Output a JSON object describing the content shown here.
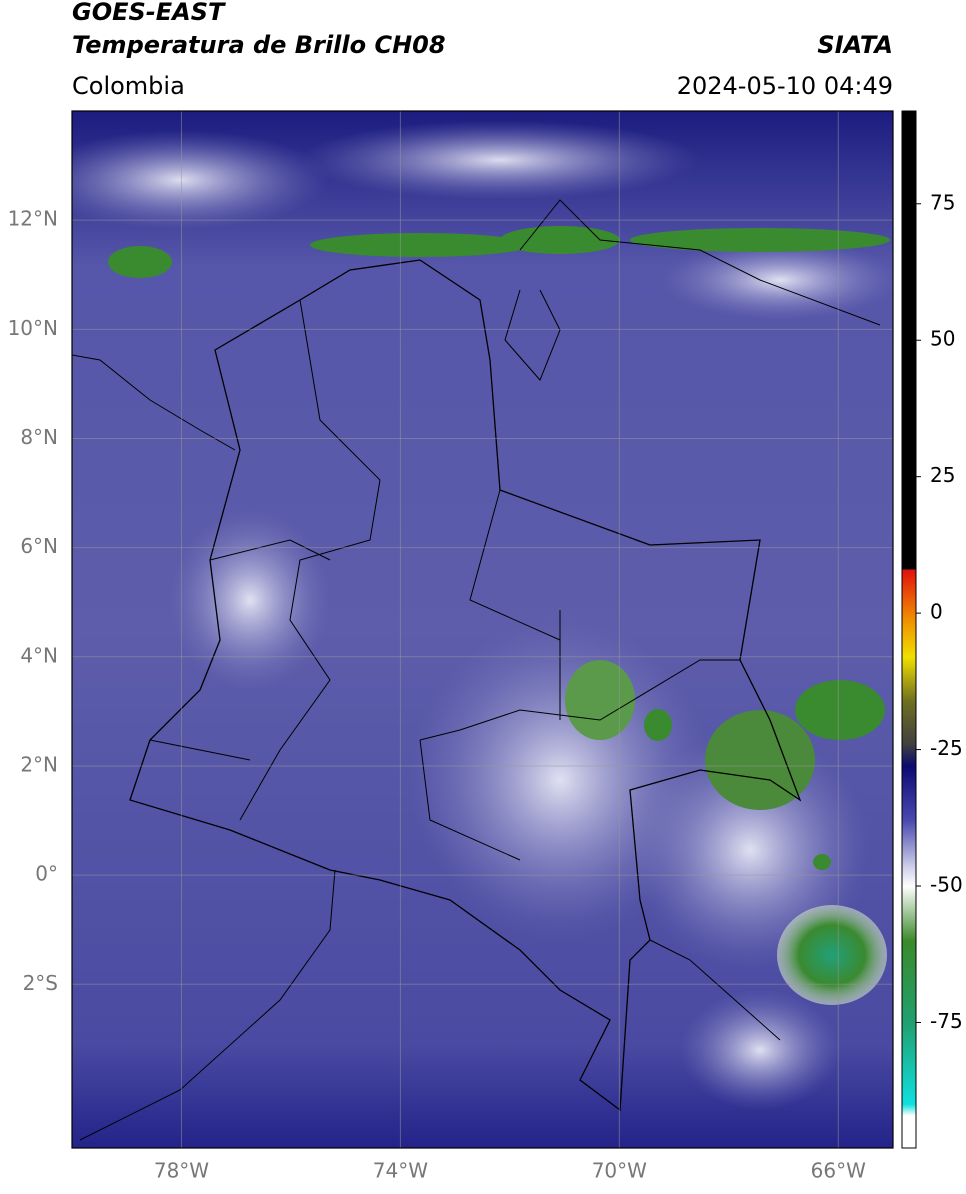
{
  "header": {
    "title": "GOES-EAST",
    "subtitle": "Temperatura de Brillo CH08",
    "source": "SIATA",
    "region": "Colombia",
    "datetime": "2024-05-10 04:49"
  },
  "map": {
    "xlim": [
      -80,
      -65
    ],
    "ylim": [
      -5,
      14
    ],
    "xticks": [
      {
        "value": -78,
        "label": "78°W"
      },
      {
        "value": -74,
        "label": "74°W"
      },
      {
        "value": -70,
        "label": "70°W"
      },
      {
        "value": -66,
        "label": "66°W"
      }
    ],
    "yticks": [
      {
        "value": 12,
        "label": "12°N"
      },
      {
        "value": 10,
        "label": "10°N"
      },
      {
        "value": 8,
        "label": "8°N"
      },
      {
        "value": 6,
        "label": "6°N"
      },
      {
        "value": 4,
        "label": "4°N"
      },
      {
        "value": 2,
        "label": "2°N"
      },
      {
        "value": 0,
        "label": "0°"
      },
      {
        "value": -2,
        "label": "2°S"
      }
    ],
    "grid": true
  },
  "colorbar": {
    "lim": [
      -98,
      92
    ],
    "ticks": [
      75,
      50,
      25,
      0,
      -25,
      -50,
      -75
    ],
    "colormap": [
      {
        "value": 92,
        "color": "#000000"
      },
      {
        "value": 8,
        "color": "#000000"
      },
      {
        "value": 8,
        "color": "#e01010"
      },
      {
        "value": 0,
        "color": "#f08000"
      },
      {
        "value": -8,
        "color": "#f0e000"
      },
      {
        "value": -16,
        "color": "#707020"
      },
      {
        "value": -24,
        "color": "#404040"
      },
      {
        "value": -28,
        "color": "#0a0a70"
      },
      {
        "value": -38,
        "color": "#4a4ab0"
      },
      {
        "value": -46,
        "color": "#c8c8e8"
      },
      {
        "value": -50,
        "color": "#ffffff"
      },
      {
        "value": -60,
        "color": "#3a8a2a"
      },
      {
        "value": -75,
        "color": "#20a070"
      },
      {
        "value": -90,
        "color": "#10e0e0"
      },
      {
        "value": -92,
        "color": "#ffffff"
      },
      {
        "value": -98,
        "color": "#ffffff"
      }
    ]
  }
}
